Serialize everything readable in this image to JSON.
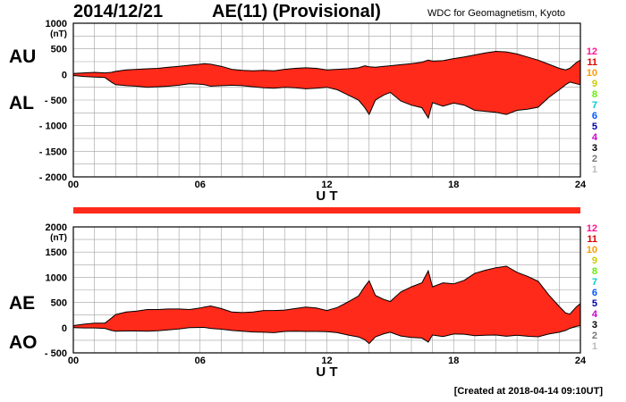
{
  "header": {
    "date": "2014/12/21",
    "title": "AE(11) (Provisional)",
    "source": "WDC for Geomagnetism, Kyoto",
    "created": "[Created at 2018-04-14 09:10UT]"
  },
  "colors": {
    "fill": "#ff2a1a",
    "outline": "#000000",
    "grid": "#a0a0a0"
  },
  "station_legend": [
    {
      "label": "12",
      "color": "#ff1493"
    },
    {
      "label": "11",
      "color": "#dd0000"
    },
    {
      "label": "10",
      "color": "#ff9900"
    },
    {
      "label": "9",
      "color": "#cccc00"
    },
    {
      "label": "8",
      "color": "#66ee00"
    },
    {
      "label": "7",
      "color": "#00cccc"
    },
    {
      "label": "6",
      "color": "#0055ff"
    },
    {
      "label": "5",
      "color": "#0000aa"
    },
    {
      "label": "4",
      "color": "#cc00cc"
    },
    {
      "label": "3",
      "color": "#000000"
    },
    {
      "label": "2",
      "color": "#777777"
    },
    {
      "label": "1",
      "color": "#bbbbbb"
    }
  ],
  "chart_data": [
    {
      "type": "area",
      "panel": "AU/AL",
      "series_labels": {
        "upper": "AU",
        "lower": "AL"
      },
      "xlabel": "U T",
      "ylabel_unit": "(nT)",
      "xlim": [
        0,
        24
      ],
      "ylim": [
        -2000,
        1000
      ],
      "x_ticks": [
        "00",
        "06",
        "12",
        "18",
        "24"
      ],
      "y_ticks": [
        "1000",
        "500",
        "0",
        "- 500",
        "- 1000",
        "- 1500",
        "- 2000"
      ],
      "grid": true,
      "x": [
        0,
        0.5,
        1,
        1.5,
        1.8,
        2,
        2.5,
        3,
        3.5,
        4,
        4.5,
        5,
        5.5,
        6,
        6.2,
        6.5,
        7,
        7.5,
        8,
        8.5,
        9,
        9.5,
        10,
        10.5,
        11,
        11.5,
        12,
        12.5,
        13,
        13.5,
        13.8,
        14,
        14.3,
        14.7,
        15,
        15.5,
        16,
        16.5,
        16.8,
        17,
        17.5,
        18,
        18.5,
        19,
        19.5,
        20,
        20.5,
        21,
        21.5,
        22,
        22.5,
        23,
        23.3,
        23.5,
        23.8,
        24
      ],
      "au": [
        20,
        30,
        40,
        30,
        40,
        60,
        90,
        100,
        110,
        120,
        140,
        160,
        180,
        200,
        210,
        200,
        160,
        100,
        80,
        70,
        80,
        70,
        100,
        120,
        130,
        120,
        90,
        100,
        110,
        130,
        170,
        150,
        140,
        160,
        170,
        190,
        210,
        240,
        280,
        260,
        270,
        310,
        340,
        380,
        420,
        450,
        440,
        400,
        340,
        280,
        200,
        120,
        90,
        120,
        230,
        280
      ],
      "al": [
        -20,
        -40,
        -50,
        -60,
        -150,
        -200,
        -220,
        -230,
        -250,
        -240,
        -230,
        -210,
        -180,
        -190,
        -200,
        -230,
        -220,
        -210,
        -220,
        -240,
        -260,
        -270,
        -250,
        -260,
        -280,
        -270,
        -250,
        -300,
        -400,
        -500,
        -650,
        -780,
        -500,
        -400,
        -350,
        -520,
        -600,
        -650,
        -850,
        -550,
        -620,
        -560,
        -600,
        -700,
        -720,
        -740,
        -780,
        -700,
        -680,
        -640,
        -450,
        -300,
        -200,
        -150,
        -180,
        -200
      ]
    },
    {
      "type": "area",
      "panel": "AE/AO",
      "series_labels": {
        "upper": "AE",
        "lower": "AO"
      },
      "xlabel": "U T",
      "ylabel_unit": "(nT)",
      "xlim": [
        0,
        24
      ],
      "ylim": [
        -500,
        2000
      ],
      "x_ticks": [
        "00",
        "06",
        "12",
        "18",
        "24"
      ],
      "y_ticks": [
        "2000",
        "1500",
        "1000",
        "500",
        "0",
        "- 500"
      ],
      "grid": true,
      "x": [
        0,
        0.5,
        1,
        1.5,
        1.8,
        2,
        2.5,
        3,
        3.5,
        4,
        4.5,
        5,
        5.5,
        6,
        6.2,
        6.5,
        7,
        7.5,
        8,
        8.5,
        9,
        9.5,
        10,
        10.5,
        11,
        11.5,
        12,
        12.5,
        13,
        13.5,
        13.8,
        14,
        14.3,
        14.7,
        15,
        15.5,
        16,
        16.5,
        16.8,
        17,
        17.5,
        18,
        18.5,
        19,
        19.5,
        20,
        20.5,
        21,
        21.5,
        22,
        22.5,
        23,
        23.3,
        23.5,
        23.8,
        24
      ],
      "ae": [
        40,
        70,
        90,
        90,
        190,
        260,
        310,
        330,
        360,
        360,
        370,
        370,
        360,
        390,
        410,
        430,
        380,
        310,
        300,
        310,
        340,
        340,
        350,
        380,
        410,
        390,
        340,
        400,
        510,
        630,
        820,
        930,
        640,
        560,
        520,
        710,
        810,
        890,
        1130,
        810,
        890,
        870,
        940,
        1080,
        1140,
        1190,
        1220,
        1100,
        1020,
        920,
        650,
        420,
        290,
        270,
        410,
        480
      ],
      "ao": [
        0,
        -5,
        -5,
        -15,
        -55,
        -70,
        -65,
        -65,
        -70,
        -60,
        -45,
        -25,
        0,
        5,
        5,
        -15,
        -30,
        -55,
        -70,
        -85,
        -90,
        -100,
        -75,
        -70,
        -75,
        -75,
        -80,
        -100,
        -145,
        -185,
        -240,
        -315,
        -180,
        -120,
        -90,
        -165,
        -195,
        -205,
        -285,
        -145,
        -175,
        -125,
        -130,
        -160,
        -150,
        -145,
        -170,
        -150,
        -170,
        -180,
        -125,
        -90,
        -55,
        -15,
        25,
        40
      ]
    }
  ]
}
